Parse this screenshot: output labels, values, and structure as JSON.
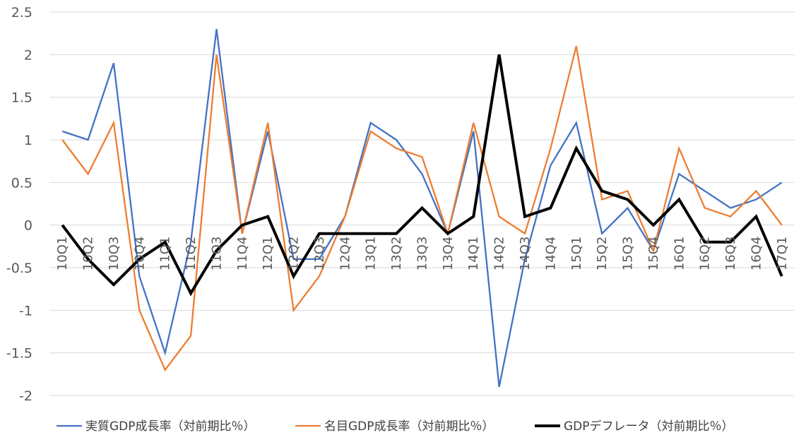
{
  "chart_data": {
    "type": "line",
    "categories": [
      "10Q1",
      "10Q2",
      "10Q3",
      "10Q4",
      "11Q1",
      "11Q2",
      "11Q3",
      "11Q4",
      "12Q1",
      "12Q2",
      "12Q3",
      "12Q4",
      "13Q1",
      "13Q2",
      "13Q3",
      "13Q4",
      "14Q1",
      "14Q2",
      "14Q3",
      "14Q4",
      "15Q1",
      "15Q2",
      "15Q3",
      "15Q4",
      "16Q1",
      "16Q2",
      "16Q3",
      "16Q4",
      "17Q1"
    ],
    "series": [
      {
        "name": "実質GDP成長率（対前期比％）",
        "color": "#4472C4",
        "values": [
          1.1,
          1.0,
          1.9,
          -0.6,
          -1.5,
          -0.2,
          2.3,
          -0.1,
          1.1,
          -0.4,
          -0.4,
          0.1,
          1.2,
          1.0,
          0.6,
          -0.1,
          1.1,
          -1.9,
          -0.4,
          0.7,
          1.2,
          -0.1,
          0.2,
          -0.3,
          0.6,
          0.4,
          0.2,
          0.3,
          0.5
        ]
      },
      {
        "name": "名目GDP成長率（対前期比％）",
        "color": "#ED7D31",
        "values": [
          1.0,
          0.6,
          1.2,
          -1.0,
          -1.7,
          -1.3,
          2.0,
          -0.1,
          1.2,
          -1.0,
          -0.6,
          0.1,
          1.1,
          0.9,
          0.8,
          -0.1,
          1.2,
          0.1,
          -0.1,
          0.9,
          2.1,
          0.3,
          0.4,
          -0.3,
          0.9,
          0.2,
          0.1,
          0.4,
          0.0
        ]
      },
      {
        "name": "GDPデフレータ（対前期比％）",
        "color": "#000000",
        "values": [
          0.0,
          -0.4,
          -0.7,
          -0.4,
          -0.2,
          -0.8,
          -0.3,
          0.0,
          0.1,
          -0.6,
          -0.1,
          -0.1,
          -0.1,
          -0.1,
          0.2,
          -0.1,
          0.1,
          2.0,
          0.1,
          0.2,
          0.9,
          0.4,
          0.3,
          0.0,
          0.3,
          -0.2,
          -0.2,
          0.1,
          -0.6
        ]
      }
    ],
    "yticks": [
      "2.5",
      "2",
      "1.5",
      "1",
      "0.5",
      "0",
      "-0.5",
      "-1",
      "-1.5",
      "-2"
    ],
    "ylim": [
      -2,
      2.5
    ],
    "grid": true,
    "legend": "bottom"
  }
}
